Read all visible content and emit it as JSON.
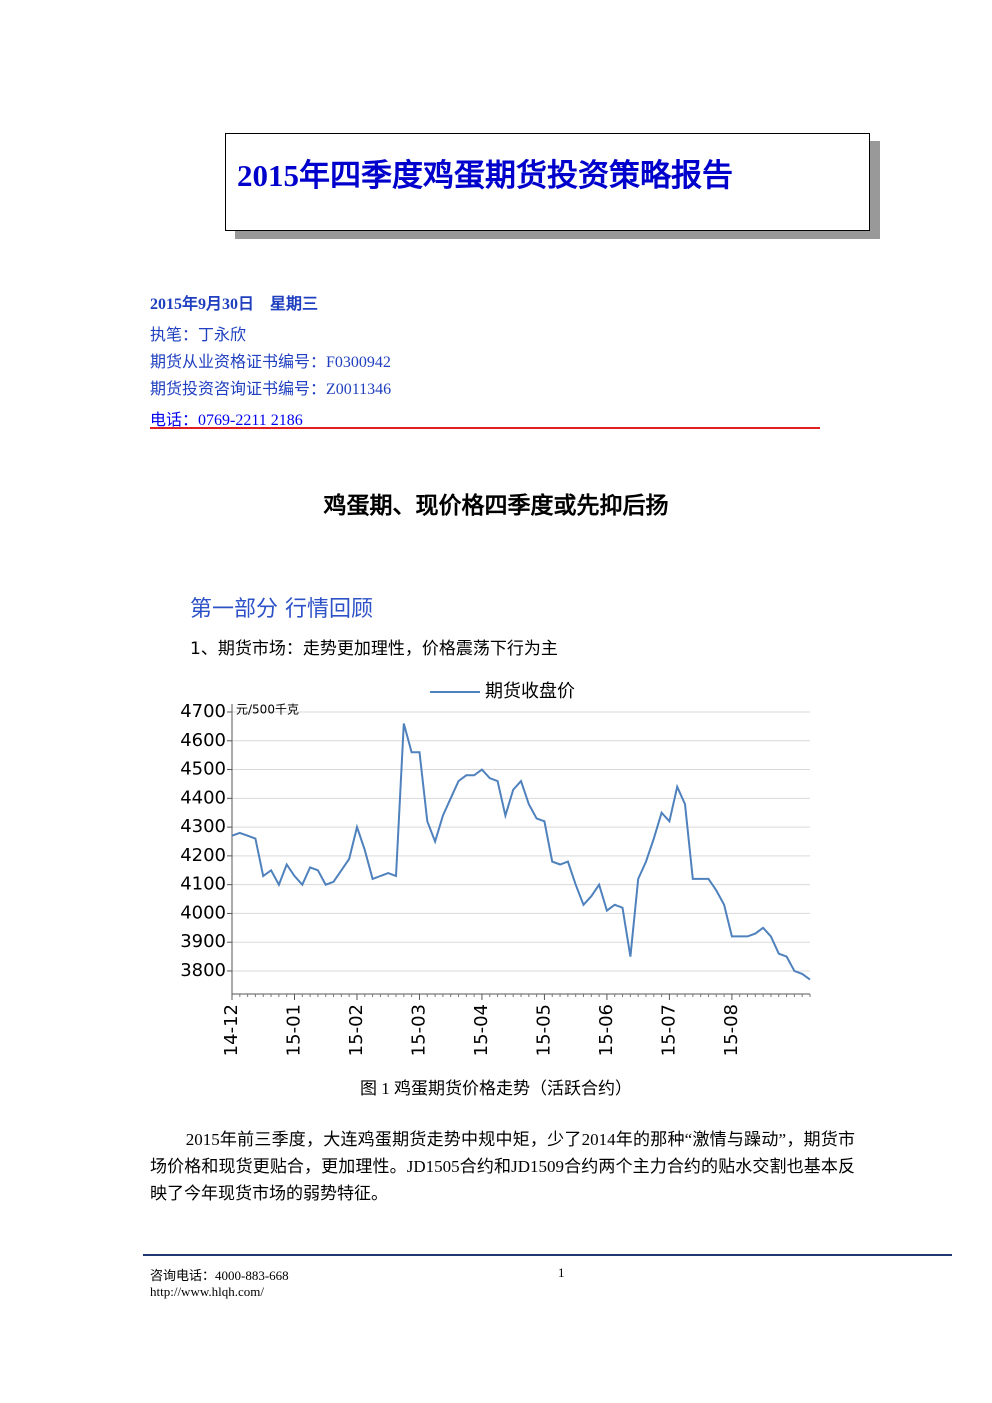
{
  "header": {
    "title": "2015年四季度鸡蛋期货投资策略报告"
  },
  "meta": {
    "date": "2015年9月30日　星期三",
    "author": "执笔：丁永欣",
    "qualification": "期货从业资格证书编号：F0300942",
    "consulting": "期货投资咨询证书编号：Z0011346",
    "phone": "电话：0769-2211 2186"
  },
  "headline": "鸡蛋期、现价格四季度或先抑后扬",
  "section": "第一部分 行情回顾",
  "subsection": "1、期货市场：走势更加理性，价格震荡下行为主",
  "chart_data": {
    "type": "line",
    "ylabel": "元/500千克",
    "categories": [
      "14-12",
      null,
      null,
      null,
      null,
      null,
      null,
      null,
      "15-01",
      null,
      null,
      null,
      null,
      null,
      null,
      null,
      "15-02",
      null,
      null,
      null,
      null,
      null,
      null,
      null,
      "15-03",
      null,
      null,
      null,
      null,
      null,
      null,
      null,
      "15-04",
      null,
      null,
      null,
      null,
      null,
      null,
      null,
      "15-05",
      null,
      null,
      null,
      null,
      null,
      null,
      null,
      "15-06",
      null,
      null,
      null,
      null,
      null,
      null,
      null,
      "15-07",
      null,
      null,
      null,
      null,
      null,
      null,
      null,
      "15-08",
      null,
      null,
      null,
      null,
      null,
      null,
      null,
      null,
      null,
      null
    ],
    "series": [
      {
        "name": "期货收盘价",
        "color": "#4f81bd",
        "values": [
          4270,
          4280,
          4270,
          4260,
          4130,
          4150,
          4100,
          4170,
          4130,
          4100,
          4160,
          4150,
          4100,
          4110,
          4150,
          4190,
          4300,
          4220,
          4120,
          4130,
          4140,
          4130,
          4660,
          4560,
          4560,
          4320,
          4250,
          4340,
          4400,
          4460,
          4480,
          4480,
          4500,
          4470,
          4460,
          4340,
          4430,
          4460,
          4380,
          4330,
          4320,
          4180,
          4170,
          4180,
          4100,
          4030,
          4060,
          4100,
          4010,
          4030,
          4020,
          3850,
          4120,
          4180,
          4260,
          4350,
          4320,
          4440,
          4380,
          4120,
          4120,
          4120,
          4080,
          4030,
          3920,
          3920,
          3920,
          3930,
          3950,
          3920,
          3860,
          3850,
          3800,
          3790,
          3770
        ]
      }
    ],
    "ylim": [
      3720,
      4700
    ],
    "yticks": [
      3800,
      3900,
      4000,
      4100,
      4200,
      4300,
      4400,
      4500,
      4600,
      4700
    ],
    "grid": true
  },
  "caption": "图 1  鸡蛋期货价格走势（活跃合约）",
  "paragraph": "2015年前三季度，大连鸡蛋期货走势中规中矩，少了2014年的那种“激情与躁动”，期货市场价格和现货更贴合，更加理性。JD1505合约和JD1509合约两个主力合约的贴水交割也基本反映了今年现货市场的弱势特征。",
  "footer": {
    "phone": "咨询电话：4000-883-668",
    "page": "1",
    "url": "http://www.hlqh.com/"
  }
}
